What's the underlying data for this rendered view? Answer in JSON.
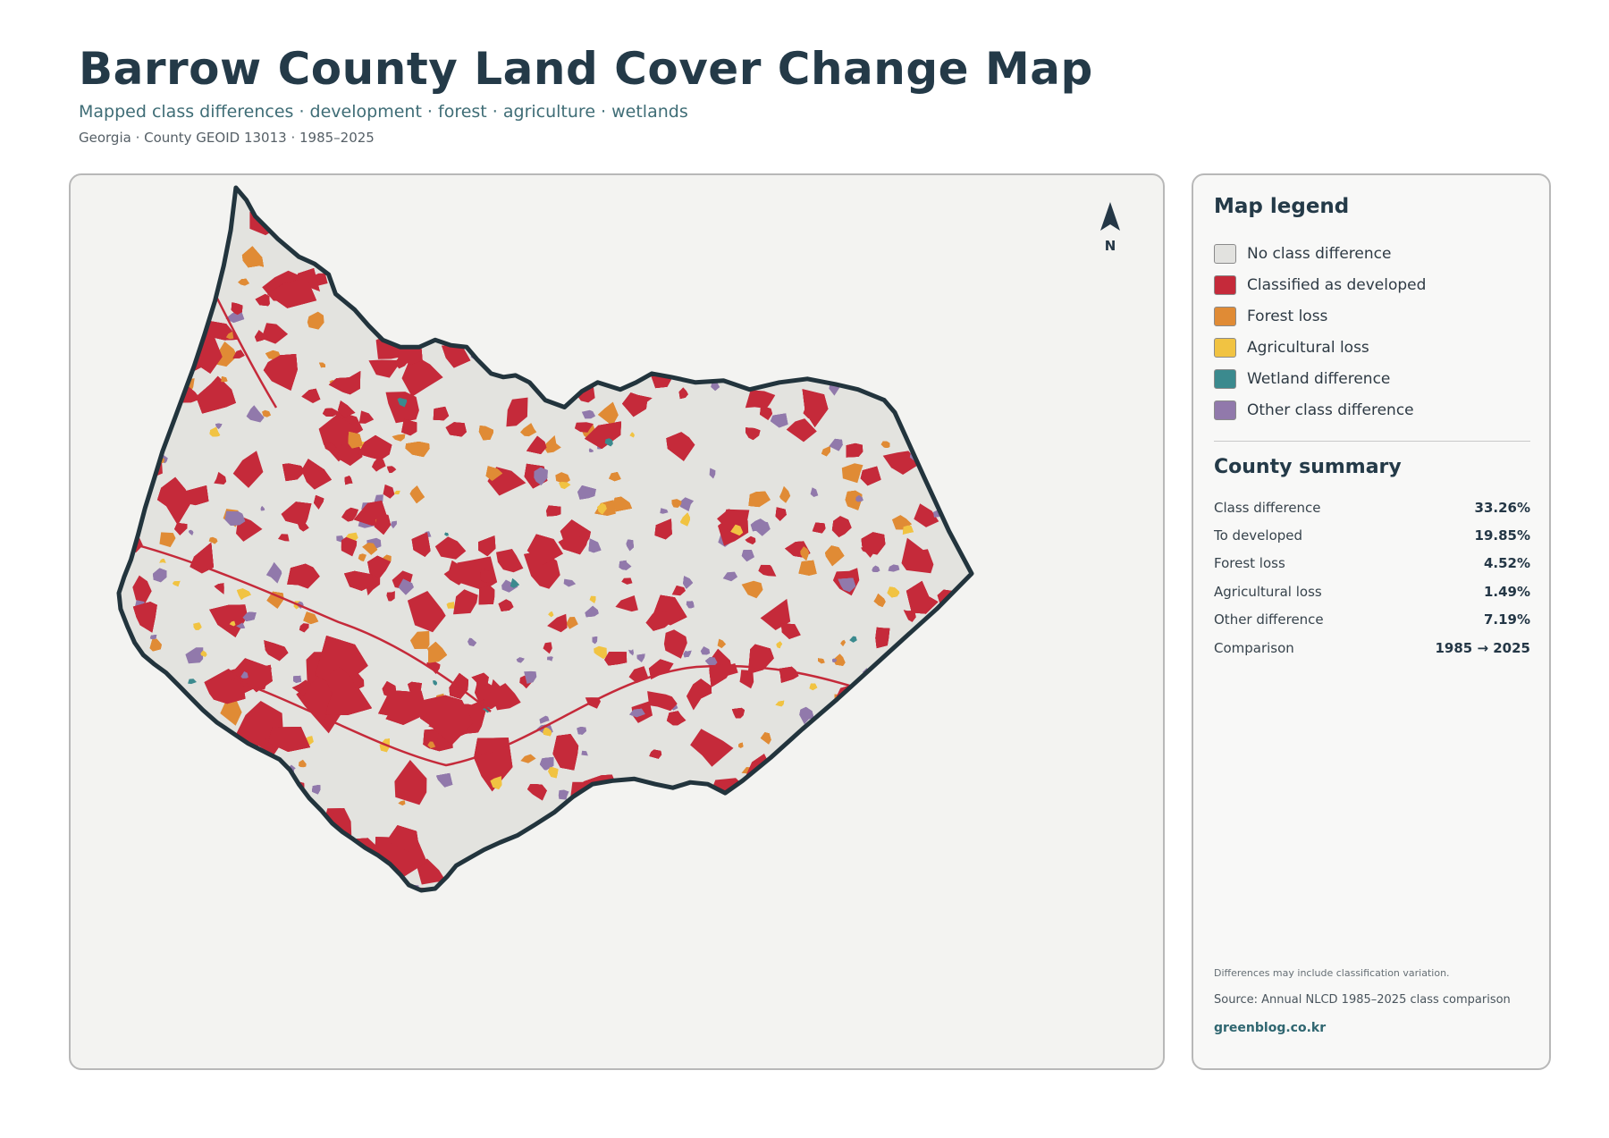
{
  "header": {
    "title": "Barrow County Land Cover Change Map",
    "subtitle": "Mapped class differences · development · forest · agriculture · wetlands",
    "meta": "Georgia · County GEOID 13013 · 1985–2025"
  },
  "map": {
    "north_label": "N",
    "colors": {
      "background": "#f3f3f1",
      "county_fill": "#e3e3df",
      "boundary": "#22343d"
    }
  },
  "legend": {
    "title": "Map legend",
    "items": [
      {
        "label": "No class difference",
        "color": "#e2e2df"
      },
      {
        "label": "Classified as developed",
        "color": "#c52a3a"
      },
      {
        "label": "Forest loss",
        "color": "#e08b35"
      },
      {
        "label": "Agricultural loss",
        "color": "#f1c342"
      },
      {
        "label": "Wetland difference",
        "color": "#3b8a8e"
      },
      {
        "label": "Other class difference",
        "color": "#9179ab"
      }
    ]
  },
  "summary": {
    "title": "County summary",
    "rows": [
      {
        "key": "Class difference",
        "value": "33.26%"
      },
      {
        "key": "To developed",
        "value": "19.85%"
      },
      {
        "key": "Forest loss",
        "value": "4.52%"
      },
      {
        "key": "Agricultural loss",
        "value": "1.49%"
      },
      {
        "key": "Other difference",
        "value": "7.19%"
      },
      {
        "key": "Comparison",
        "value": "1985 → 2025"
      }
    ]
  },
  "footer": {
    "note": "Differences may include classification variation.",
    "source": "Source: Annual NLCD 1985–2025 class comparison",
    "site": "greenblog.co.kr"
  }
}
